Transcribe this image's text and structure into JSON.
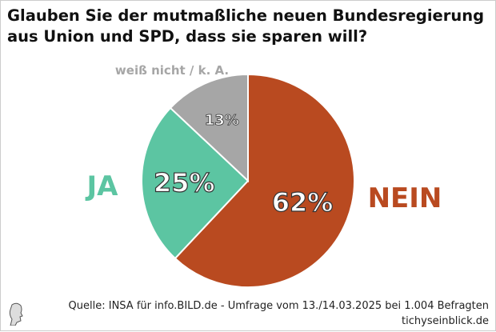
{
  "chart_data": {
    "type": "pie",
    "title": "Glauben Sie der mutmaßliche neuen Bundesregierung aus Union und SPD, dass sie sparen will?",
    "slices": [
      {
        "label": "NEIN",
        "value": 62,
        "value_label": "62%",
        "color": "#b94a20"
      },
      {
        "label": "JA",
        "value": 25,
        "value_label": "25%",
        "color": "#5cc5a2"
      },
      {
        "label": "weiß nicht / k. A.",
        "value": 13,
        "value_label": "13%",
        "color": "#a6a6a6"
      }
    ]
  },
  "source": "Quelle: INSA für info.BILD.de - Umfrage vom 13./14.03.2025 bei 1.004 Befragten",
  "site": "tichyseinblick.de"
}
